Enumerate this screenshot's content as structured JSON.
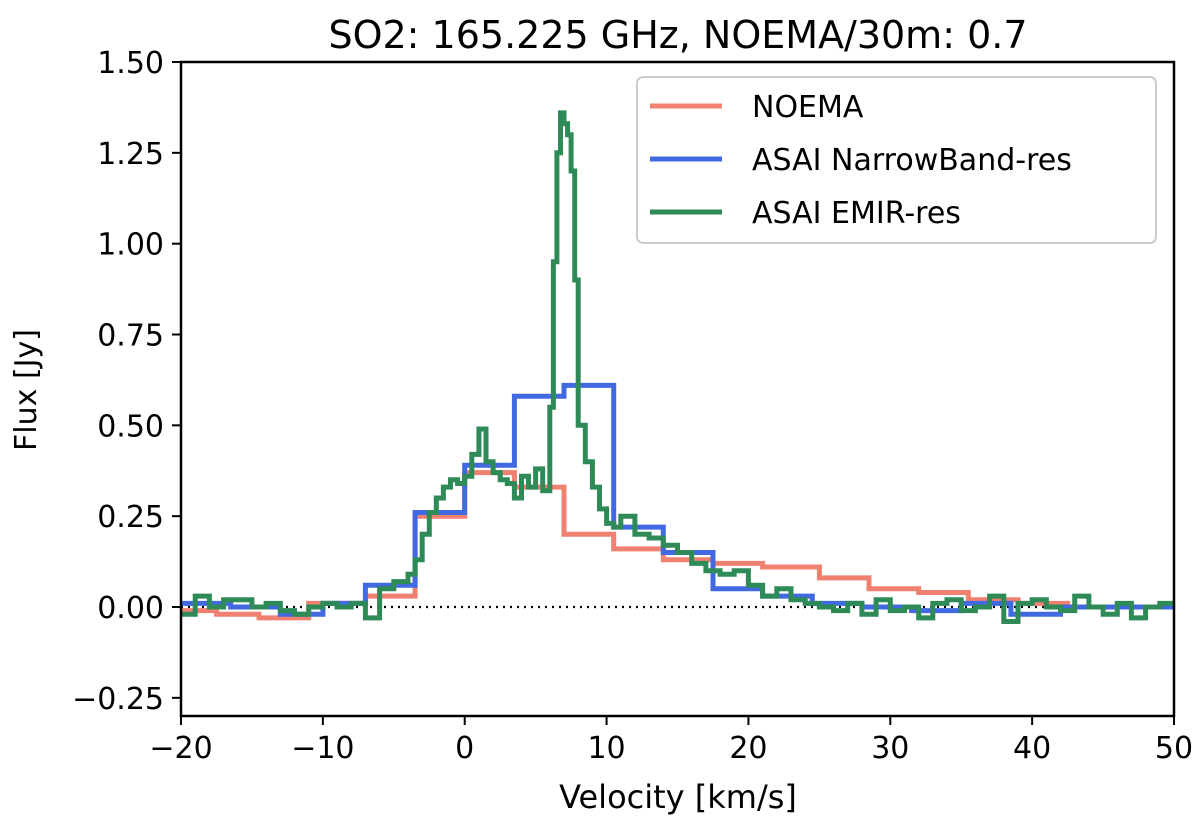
{
  "chart_data": {
    "type": "line",
    "title": "SO2: 165.225 GHz, NOEMA/30m:  0.7",
    "xlabel": "Velocity [km/s]",
    "ylabel": "Flux [Jy]",
    "xlim": [
      -20,
      50
    ],
    "ylim": [
      -0.3,
      1.5
    ],
    "xticks": [
      -20,
      -10,
      0,
      10,
      20,
      30,
      40,
      50
    ],
    "xtick_labels": [
      "−20",
      "−10",
      "0",
      "10",
      "20",
      "30",
      "40",
      "50"
    ],
    "yticks": [
      -0.25,
      0,
      0.25,
      0.5,
      0.75,
      1.0,
      1.25,
      1.5
    ],
    "ytick_labels": [
      "−0.25",
      "0.00",
      "0.25",
      "0.50",
      "0.75",
      "1.00",
      "1.25",
      "1.50"
    ],
    "baseline": 0,
    "legend_position": "top-right",
    "series": [
      {
        "name": "NOEMA",
        "color": "#f08070",
        "step": true,
        "x": [
          -20,
          -17.5,
          -14.5,
          -11,
          -7,
          -3.5,
          0,
          3.5,
          7,
          10.5,
          14,
          17.5,
          21,
          25,
          28.5,
          32,
          35.5,
          39,
          42.5
        ],
        "y": [
          -0.01,
          -0.02,
          -0.03,
          0.01,
          0.03,
          0.25,
          0.37,
          0.33,
          0.2,
          0.16,
          0.13,
          0.12,
          0.11,
          0.08,
          0.05,
          0.04,
          0.02,
          0.01,
          0.0
        ]
      },
      {
        "name": "ASAI NarrowBand-res",
        "color": "#4169e1",
        "step": true,
        "x": [
          -20,
          -16.5,
          -13,
          -10,
          -7,
          -3.5,
          0,
          3.5,
          7,
          10.5,
          14,
          17.5,
          21,
          24.5,
          28,
          31.5,
          35,
          38.5,
          42
        ],
        "y": [
          0.01,
          0.0,
          -0.02,
          0.01,
          0.06,
          0.26,
          0.39,
          0.58,
          0.61,
          0.22,
          0.15,
          0.05,
          0.03,
          0.01,
          0.0,
          -0.01,
          0.01,
          -0.02,
          0.0
        ]
      },
      {
        "name": "ASAI EMIR-res",
        "color": "#2e8b57",
        "step": true,
        "x": [
          -20,
          -19,
          -18,
          -17,
          -16,
          -15,
          -14,
          -13,
          -12,
          -11,
          -10,
          -9,
          -8,
          -7,
          -6,
          -5,
          -4,
          -3.5,
          -3,
          -2.5,
          -2,
          -1.5,
          -1,
          -0.5,
          0,
          0.5,
          1,
          1.5,
          2,
          2.5,
          3,
          3.5,
          4,
          4.5,
          5,
          5.5,
          6,
          6.25,
          6.5,
          6.75,
          7,
          7.25,
          7.5,
          7.75,
          8,
          8.5,
          9,
          9.5,
          10,
          10.5,
          11,
          12,
          13,
          14,
          15,
          16,
          17,
          18,
          19,
          20,
          21,
          22,
          23,
          24,
          25,
          26,
          27,
          28,
          29,
          30,
          31,
          32,
          33,
          34,
          35,
          36,
          37,
          38,
          39,
          40,
          41,
          42,
          43,
          44,
          45,
          46,
          47,
          48,
          49
        ],
        "y": [
          -0.02,
          0.03,
          0.0,
          0.02,
          0.02,
          0.0,
          0.01,
          -0.01,
          -0.02,
          0.0,
          0.01,
          0.0,
          0.01,
          -0.03,
          0.05,
          0.07,
          0.09,
          0.13,
          0.2,
          0.26,
          0.3,
          0.33,
          0.35,
          0.34,
          0.36,
          0.42,
          0.49,
          0.4,
          0.37,
          0.35,
          0.34,
          0.3,
          0.36,
          0.33,
          0.38,
          0.32,
          0.55,
          0.95,
          1.25,
          1.36,
          1.33,
          1.3,
          1.2,
          0.9,
          0.5,
          0.4,
          0.33,
          0.27,
          0.23,
          0.22,
          0.25,
          0.2,
          0.19,
          0.17,
          0.15,
          0.12,
          0.1,
          0.09,
          0.1,
          0.06,
          0.03,
          0.05,
          0.02,
          0.01,
          0.0,
          -0.01,
          0.01,
          -0.02,
          0.02,
          -0.01,
          0.0,
          -0.03,
          0.01,
          0.02,
          -0.01,
          0.0,
          0.03,
          -0.04,
          0.01,
          0.02,
          0.0,
          -0.01,
          0.03,
          0.0,
          -0.02,
          0.01,
          -0.03,
          0.0,
          0.01
        ]
      }
    ]
  }
}
